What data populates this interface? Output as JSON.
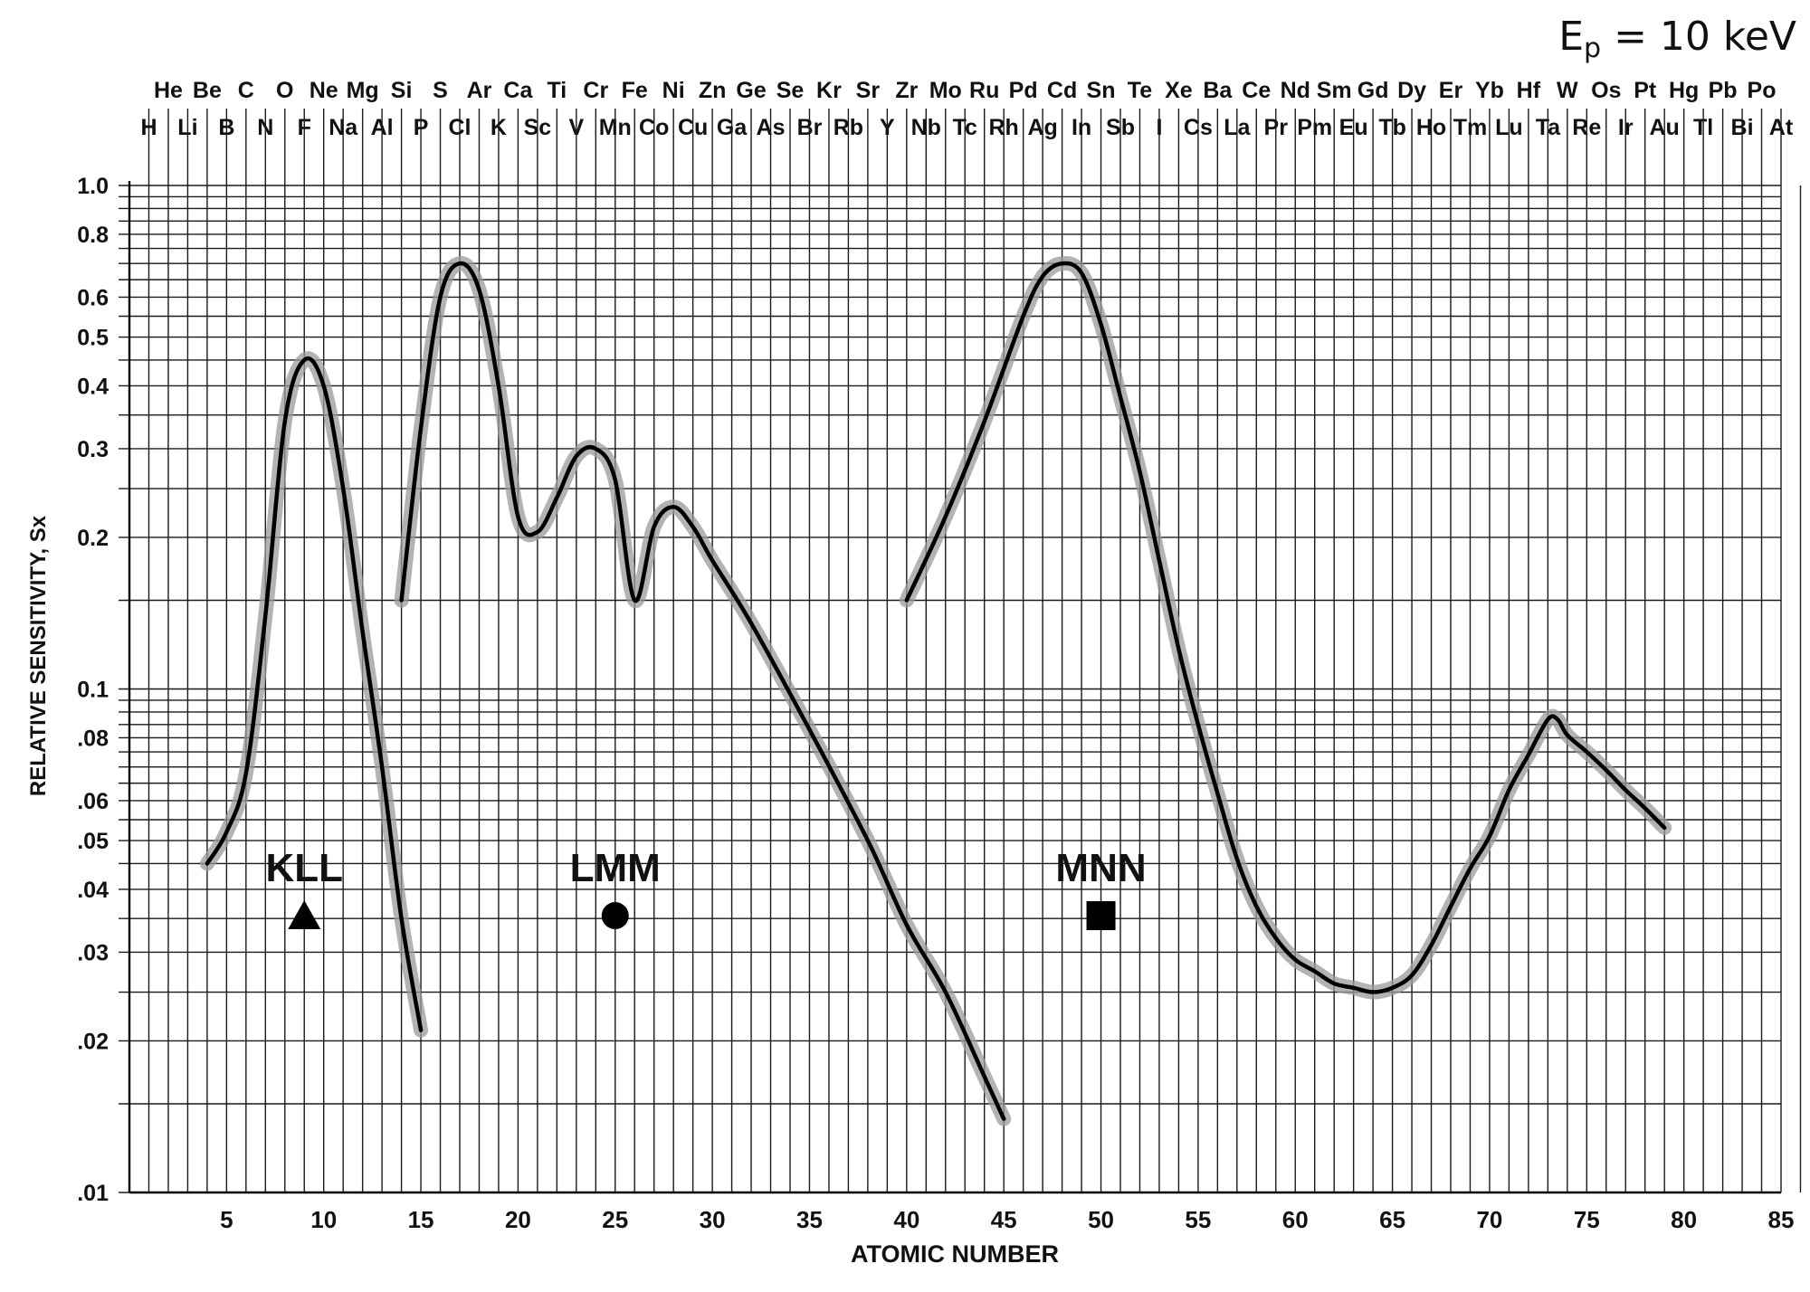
{
  "chart_data": {
    "type": "line",
    "annotation": "Ep = 10 keV",
    "xlabel": "ATOMIC NUMBER",
    "ylabel": "RELATIVE SENSITIVITY, Sx",
    "x_range": [
      0,
      85
    ],
    "y_range": [
      0.01,
      1.0
    ],
    "y_scale": "log",
    "grid": true,
    "x_ticks": [
      "5",
      "10",
      "15",
      "20",
      "25",
      "30",
      "35",
      "40",
      "45",
      "50",
      "55",
      "60",
      "65",
      "70",
      "75",
      "80",
      "85"
    ],
    "y_ticks": [
      {
        "value": 1.0,
        "label": "1.0"
      },
      {
        "value": 0.8,
        "label": "0.8"
      },
      {
        "value": 0.6,
        "label": "0.6"
      },
      {
        "value": 0.5,
        "label": "0.5"
      },
      {
        "value": 0.4,
        "label": "0.4"
      },
      {
        "value": 0.3,
        "label": "0.3"
      },
      {
        "value": 0.2,
        "label": "0.2"
      },
      {
        "value": 0.1,
        "label": "0.1"
      },
      {
        "value": 0.08,
        "label": ".08"
      },
      {
        "value": 0.06,
        "label": ".06"
      },
      {
        "value": 0.05,
        "label": ".05"
      },
      {
        "value": 0.04,
        "label": ".04"
      },
      {
        "value": 0.03,
        "label": ".03"
      },
      {
        "value": 0.02,
        "label": ".02"
      },
      {
        "value": 0.01,
        "label": ".01"
      }
    ],
    "elements_top_row": [
      "He",
      "Be",
      "C",
      "O",
      "Ne",
      "Mg",
      "Si",
      "S",
      "Ar",
      "Ca",
      "Ti",
      "Cr",
      "Fe",
      "Ni",
      "Zn",
      "Ge",
      "Se",
      "Kr",
      "Sr",
      "Zr",
      "Mo",
      "Ru",
      "Pd",
      "Cd",
      "Sn",
      "Te",
      "Xe",
      "Ba",
      "Ce",
      "Nd",
      "Sm",
      "Gd",
      "Dy",
      "Er",
      "Yb",
      "Hf",
      "W",
      "Os",
      "Pt",
      "Hg",
      "Pb",
      "Po"
    ],
    "elements_bottom_row": [
      "H",
      "Li",
      "B",
      "N",
      "F",
      "Na",
      "Al",
      "P",
      "Cl",
      "K",
      "Sc",
      "V",
      "Mn",
      "Co",
      "Cu",
      "Ga",
      "As",
      "Br",
      "Rb",
      "Y",
      "Nb",
      "Tc",
      "Rh",
      "Ag",
      "In",
      "Sb",
      "I",
      "Cs",
      "La",
      "Pr",
      "Pm",
      "Eu",
      "Tb",
      "Ho",
      "Tm",
      "Lu",
      "Ta",
      "Re",
      "Ir",
      "Au",
      "Tl",
      "Bi",
      "At"
    ],
    "series": [
      {
        "name": "KLL",
        "marker": "triangle",
        "points": [
          [
            4,
            0.045
          ],
          [
            5,
            0.052
          ],
          [
            6,
            0.068
          ],
          [
            7,
            0.14
          ],
          [
            8,
            0.34
          ],
          [
            9,
            0.45
          ],
          [
            10,
            0.4
          ],
          [
            11,
            0.25
          ],
          [
            12,
            0.13
          ],
          [
            13,
            0.07
          ],
          [
            14,
            0.035
          ],
          [
            15,
            0.021
          ]
        ]
      },
      {
        "name": "LMM",
        "marker": "circle",
        "points": [
          [
            14,
            0.15
          ],
          [
            15,
            0.33
          ],
          [
            16,
            0.6
          ],
          [
            17,
            0.7
          ],
          [
            18,
            0.62
          ],
          [
            19,
            0.4
          ],
          [
            20,
            0.22
          ],
          [
            21,
            0.205
          ],
          [
            22,
            0.24
          ],
          [
            23,
            0.29
          ],
          [
            24,
            0.3
          ],
          [
            25,
            0.26
          ],
          [
            26,
            0.15
          ],
          [
            27,
            0.21
          ],
          [
            28,
            0.23
          ],
          [
            29,
            0.21
          ],
          [
            30,
            0.18
          ],
          [
            32,
            0.135
          ],
          [
            35,
            0.083
          ],
          [
            38,
            0.05
          ],
          [
            40,
            0.034
          ],
          [
            42,
            0.025
          ],
          [
            44,
            0.017
          ],
          [
            45,
            0.014
          ]
        ]
      },
      {
        "name": "MNN",
        "marker": "square",
        "points": [
          [
            40,
            0.15
          ],
          [
            42,
            0.22
          ],
          [
            44,
            0.34
          ],
          [
            46,
            0.55
          ],
          [
            47,
            0.66
          ],
          [
            48,
            0.7
          ],
          [
            49,
            0.67
          ],
          [
            50,
            0.53
          ],
          [
            51,
            0.38
          ],
          [
            52,
            0.27
          ],
          [
            53,
            0.18
          ],
          [
            54,
            0.12
          ],
          [
            55,
            0.085
          ],
          [
            56,
            0.062
          ],
          [
            57,
            0.046
          ],
          [
            58,
            0.037
          ],
          [
            59,
            0.032
          ],
          [
            60,
            0.029
          ],
          [
            61,
            0.0275
          ],
          [
            62,
            0.026
          ],
          [
            63,
            0.0255
          ],
          [
            64,
            0.025
          ],
          [
            65,
            0.0255
          ],
          [
            66,
            0.027
          ],
          [
            67,
            0.031
          ],
          [
            68,
            0.037
          ],
          [
            69,
            0.044
          ],
          [
            70,
            0.051
          ],
          [
            71,
            0.063
          ],
          [
            72,
            0.074
          ],
          [
            73,
            0.087
          ],
          [
            73.5,
            0.087
          ],
          [
            74,
            0.081
          ],
          [
            75,
            0.075
          ],
          [
            76,
            0.069
          ],
          [
            77,
            0.063
          ],
          [
            78,
            0.058
          ],
          [
            79,
            0.053
          ]
        ]
      }
    ],
    "colors": {
      "curve": "#000000",
      "band": "#9a9a9a",
      "grid": "#1a1a1a"
    }
  }
}
